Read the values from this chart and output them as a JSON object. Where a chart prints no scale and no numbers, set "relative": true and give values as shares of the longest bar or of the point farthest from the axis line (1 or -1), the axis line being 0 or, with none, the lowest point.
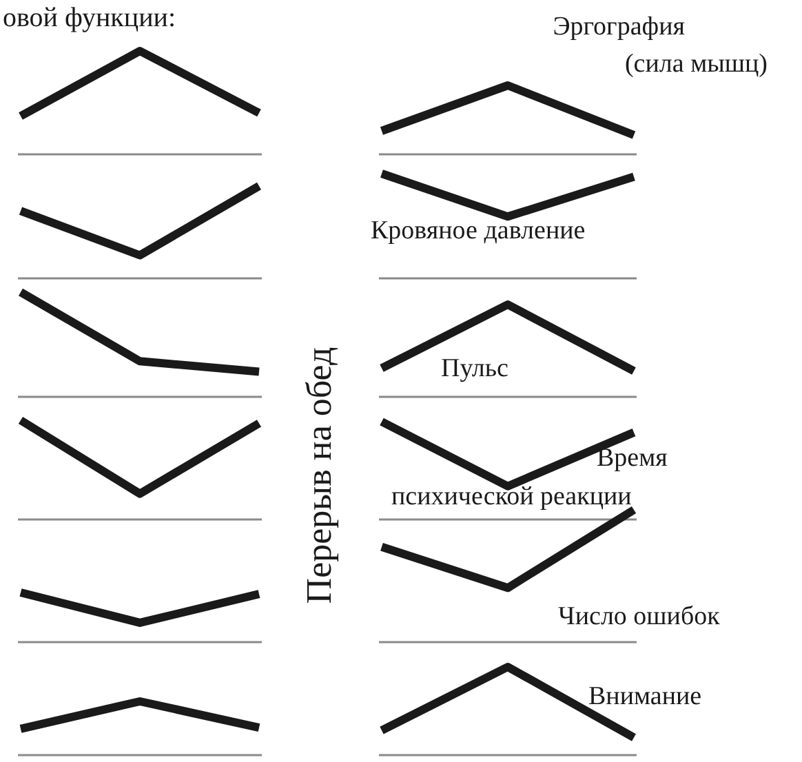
{
  "chart_data": [
    {
      "type": "line",
      "relative": true,
      "categories": [
        null,
        null,
        null
      ],
      "series": [
        {
          "color": "#1a1a1a",
          "values": [
            0.37,
            1,
            0.4
          ]
        }
      ],
      "annotations": [
        "овой функции:",
        "Перерыв на обед"
      ]
    },
    {
      "type": "line",
      "relative": true,
      "categories": [
        null,
        null,
        null
      ],
      "series": [
        {
          "color": "#1a1a1a",
          "values": [
            0.73,
            0.25,
            1
          ]
        }
      ]
    },
    {
      "type": "line",
      "relative": true,
      "categories": [
        null,
        null,
        null
      ],
      "series": [
        {
          "color": "#1a1a1a",
          "values": [
            1,
            0.34,
            0.24
          ]
        }
      ]
    },
    {
      "type": "line",
      "relative": true,
      "categories": [
        null,
        null,
        null
      ],
      "series": [
        {
          "color": "#1a1a1a",
          "values": [
            1,
            0.26,
            0.97
          ]
        }
      ]
    },
    {
      "type": "line",
      "relative": true,
      "categories": [
        null,
        null,
        null
      ],
      "series": [
        {
          "color": "#1a1a1a",
          "values": [
            1,
            0.39,
            0.97
          ]
        }
      ]
    },
    {
      "type": "line",
      "relative": true,
      "categories": [
        null,
        null,
        null
      ],
      "series": [
        {
          "color": "#1a1a1a",
          "values": [
            0.49,
            1,
            0.51
          ]
        }
      ]
    },
    {
      "type": "line",
      "relative": true,
      "title": "Эргография\n(сила мышц)",
      "categories": [
        null,
        null,
        null
      ],
      "series": [
        {
          "color": "#1a1a1a",
          "values": [
            0.34,
            1,
            0.28
          ]
        }
      ]
    },
    {
      "type": "line",
      "relative": true,
      "title": "Кровяное давление",
      "categories": [
        null,
        null,
        null
      ],
      "series": [
        {
          "color": "#1a1a1a",
          "values": [
            1,
            0.59,
            0.97
          ]
        }
      ]
    },
    {
      "type": "line",
      "relative": true,
      "title": "Пульс",
      "categories": [
        null,
        null,
        null
      ],
      "series": [
        {
          "color": "#1a1a1a",
          "values": [
            0.31,
            1,
            0.28
          ]
        }
      ]
    },
    {
      "type": "line",
      "relative": true,
      "title": "Время\nпсихической реакции",
      "categories": [
        null,
        null,
        null
      ],
      "series": [
        {
          "color": "#1a1a1a",
          "values": [
            1,
            0.34,
            0.89
          ]
        }
      ]
    },
    {
      "type": "line",
      "relative": true,
      "title": "Число ошибок",
      "categories": [
        null,
        null,
        null
      ],
      "series": [
        {
          "color": "#1a1a1a",
          "values": [
            0.72,
            0.41,
            1
          ]
        }
      ]
    },
    {
      "type": "line",
      "relative": true,
      "title": "Внимание",
      "categories": [
        null,
        null,
        null
      ],
      "series": [
        {
          "color": "#1a1a1a",
          "values": [
            0.28,
            1,
            0.2
          ]
        }
      ]
    }
  ]
}
